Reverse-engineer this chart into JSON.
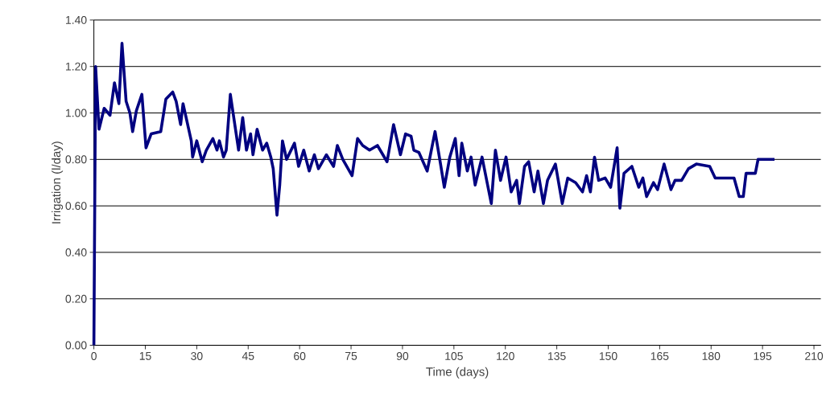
{
  "chart_data": {
    "type": "line",
    "xlabel": "Time (days)",
    "ylabel": "Irrigation (l/day)",
    "x": [
      0,
      0.5,
      1.5,
      3,
      4.7,
      6,
      7.3,
      8.2,
      9.4,
      10.5,
      11.3,
      12.4,
      14,
      15.2,
      16.7,
      19.5,
      21,
      23,
      24,
      25.3,
      26,
      27.2,
      28.4,
      28.8,
      30,
      31.6,
      32.8,
      34.7,
      35.9,
      36.6,
      37.8,
      38.6,
      39.8,
      41,
      42.2,
      43.4,
      44.5,
      45.7,
      46.4,
      47.6,
      49.2,
      50.4,
      51.6,
      52.3,
      53.4,
      54.2,
      55,
      56.2,
      58.5,
      59.7,
      61.2,
      62.8,
      64.3,
      65.5,
      67.8,
      69.9,
      71,
      72.6,
      75.3,
      76.9,
      78.4,
      80.4,
      82.7,
      85.5,
      87.4,
      89.4,
      90.9,
      92.5,
      93.3,
      94.8,
      97.2,
      99.5,
      101.1,
      102.2,
      103.8,
      105.4,
      106.5,
      107.3,
      108.9,
      110,
      111.2,
      113.2,
      115.9,
      117.1,
      118.6,
      120.2,
      121.7,
      123.3,
      124.1,
      125.6,
      126.8,
      128.4,
      129.5,
      131.1,
      132.3,
      134.6,
      136.6,
      138.2,
      140.5,
      142.5,
      143.7,
      144.8,
      146,
      147.2,
      149.1,
      150.7,
      152.6,
      153.4,
      154.6,
      156.9,
      158.9,
      160.1,
      161.2,
      163.2,
      164.4,
      166.3,
      168.3,
      169.5,
      171.4,
      173.4,
      175.7,
      179.6,
      181.2,
      186.7,
      188.2,
      189.4,
      190.2,
      192.9,
      193.7,
      198.5
    ],
    "series": [
      {
        "color": "#000080",
        "values": [
          0,
          1.2,
          0.93,
          1.02,
          0.99,
          1.13,
          1.04,
          1.3,
          1.05,
          1.0,
          0.92,
          1.01,
          1.08,
          0.85,
          0.91,
          0.92,
          1.06,
          1.09,
          1.05,
          0.95,
          1.04,
          0.96,
          0.88,
          0.81,
          0.88,
          0.79,
          0.84,
          0.89,
          0.84,
          0.88,
          0.81,
          0.84,
          1.08,
          0.96,
          0.84,
          0.98,
          0.84,
          0.91,
          0.82,
          0.93,
          0.84,
          0.87,
          0.81,
          0.76,
          0.56,
          0.69,
          0.88,
          0.8,
          0.87,
          0.77,
          0.84,
          0.75,
          0.82,
          0.76,
          0.82,
          0.77,
          0.86,
          0.8,
          0.73,
          0.89,
          0.86,
          0.84,
          0.86,
          0.79,
          0.95,
          0.82,
          0.91,
          0.9,
          0.84,
          0.83,
          0.75,
          0.92,
          0.78,
          0.68,
          0.81,
          0.89,
          0.73,
          0.87,
          0.75,
          0.81,
          0.69,
          0.81,
          0.61,
          0.84,
          0.71,
          0.81,
          0.66,
          0.71,
          0.61,
          0.77,
          0.79,
          0.66,
          0.75,
          0.61,
          0.71,
          0.78,
          0.61,
          0.72,
          0.7,
          0.66,
          0.73,
          0.66,
          0.81,
          0.71,
          0.72,
          0.68,
          0.85,
          0.59,
          0.74,
          0.77,
          0.68,
          0.72,
          0.64,
          0.7,
          0.67,
          0.78,
          0.67,
          0.71,
          0.71,
          0.76,
          0.78,
          0.77,
          0.72,
          0.72,
          0.64,
          0.64,
          0.74,
          0.74,
          0.8,
          0.8
        ]
      }
    ],
    "xlim": [
      0,
      212
    ],
    "ylim": [
      0,
      1.4
    ],
    "xticks": [
      0,
      15,
      30,
      45,
      60,
      75,
      90,
      105,
      120,
      135,
      150,
      165,
      180,
      195,
      210
    ],
    "yticks": [
      {
        "value": 0,
        "label": "0.00"
      },
      {
        "value": 0.2,
        "label": "0.20"
      },
      {
        "value": 0.4,
        "label": "0.40"
      },
      {
        "value": 0.6,
        "label": "0.60"
      },
      {
        "value": 0.8,
        "label": "0.80"
      },
      {
        "value": 1.0,
        "label": "1.00"
      },
      {
        "value": 1.2,
        "label": "1.20"
      },
      {
        "value": 1.4,
        "label": "1.40"
      }
    ],
    "grid": "y",
    "marker": "none",
    "line_style": "solid"
  }
}
